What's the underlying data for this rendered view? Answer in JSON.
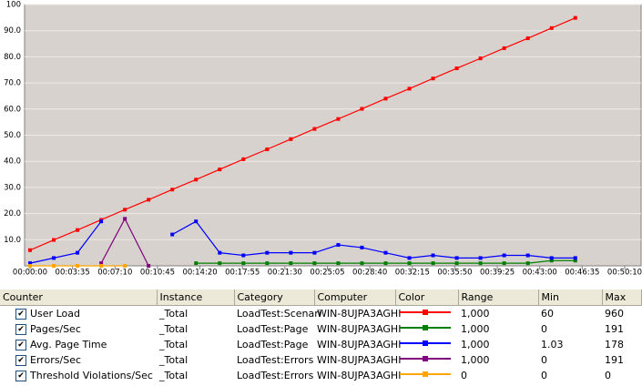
{
  "chart_data": {
    "type": "line",
    "x": [
      0,
      120,
      240,
      360,
      480,
      600,
      720,
      840,
      960,
      1080,
      1200,
      1320,
      1440,
      1560,
      1680,
      1800,
      1920,
      2040,
      2160,
      2280,
      2400,
      2520,
      2640,
      2760
    ],
    "xlim": [
      0,
      3010
    ],
    "xticks": [
      {
        "value": 0,
        "label": "00:00:00"
      },
      {
        "value": 215,
        "label": "00:03:35"
      },
      {
        "value": 430,
        "label": "00:07:10"
      },
      {
        "value": 645,
        "label": "00:10:45"
      },
      {
        "value": 860,
        "label": "00:14:20"
      },
      {
        "value": 1075,
        "label": "00:17:55"
      },
      {
        "value": 1290,
        "label": "00:21:30"
      },
      {
        "value": 1505,
        "label": "00:25:05"
      },
      {
        "value": 1720,
        "label": "00:28:40"
      },
      {
        "value": 1935,
        "label": "00:32:15"
      },
      {
        "value": 2150,
        "label": "00:35:50"
      },
      {
        "value": 2365,
        "label": "00:39:25"
      },
      {
        "value": 2580,
        "label": "00:43:00"
      },
      {
        "value": 2795,
        "label": "00:46:35"
      },
      {
        "value": 3010,
        "label": "00:50:10"
      }
    ],
    "ylim": [
      0,
      100
    ],
    "yticks": [
      {
        "value": 10,
        "label": "10.0"
      },
      {
        "value": 20,
        "label": "20.0"
      },
      {
        "value": 30,
        "label": "30.0"
      },
      {
        "value": 40,
        "label": "40.0"
      },
      {
        "value": 50,
        "label": "50.0"
      },
      {
        "value": 60,
        "label": "60.0"
      },
      {
        "value": 70,
        "label": "70.0"
      },
      {
        "value": 80,
        "label": "80.0"
      },
      {
        "value": 90,
        "label": "90.0"
      },
      100
    ],
    "grid": true,
    "series": [
      {
        "name": "User Load",
        "color": "#ff0000",
        "values": [
          6.0,
          9.9,
          13.7,
          17.6,
          21.5,
          25.3,
          29.2,
          33.0,
          36.9,
          40.8,
          44.6,
          48.5,
          52.4,
          56.2,
          60.1,
          64.0,
          67.8,
          71.7,
          75.6,
          79.4,
          83.3,
          87.1,
          91.0,
          94.9
        ]
      },
      {
        "name": "Pages/Sec",
        "color": "#008000",
        "values": [
          null,
          null,
          null,
          null,
          null,
          null,
          null,
          1,
          1,
          1,
          1,
          1,
          1,
          1,
          1,
          1,
          1,
          1,
          1,
          1,
          1,
          1,
          2,
          2
        ]
      },
      {
        "name": "Avg. Page Time",
        "color": "#0000ff",
        "values": [
          1,
          3,
          5,
          17,
          null,
          null,
          12,
          17,
          5,
          4,
          5,
          5,
          5,
          8,
          7,
          5,
          3,
          4,
          3,
          3,
          4,
          4,
          3,
          3
        ]
      },
      {
        "name": "Errors/Sec",
        "color": "#800080",
        "values": [
          null,
          null,
          null,
          1,
          18,
          0,
          null,
          null,
          null,
          null,
          null,
          null,
          null,
          null,
          null,
          null,
          null,
          null,
          null,
          null,
          null,
          null,
          null,
          null
        ]
      },
      {
        "name": "Threshold Violations/Sec",
        "color": "#ffa500",
        "values": [
          0,
          0,
          0,
          0,
          0,
          null,
          null,
          null,
          null,
          null,
          null,
          null,
          null,
          null,
          null,
          null,
          null,
          null,
          null,
          null,
          null,
          null,
          null,
          null
        ]
      }
    ]
  },
  "table": {
    "columns": [
      "Counter",
      "Instance",
      "Category",
      "Computer",
      "Color",
      "Range",
      "Min",
      "Max"
    ],
    "rows": [
      [
        "_Total",
        "LoadTest:Scenari",
        "WIN-8UJPA3AGHI",
        "1,000",
        "60",
        "960"
      ],
      [
        "_Total",
        "LoadTest:Page",
        "WIN-8UJPA3AGHI",
        "1,000",
        "0",
        "191"
      ],
      [
        "_Total",
        "LoadTest:Page",
        "WIN-8UJPA3AGHI",
        "1,000",
        "1.03",
        "178"
      ],
      [
        "_Total",
        "LoadTest:Errors",
        "WIN-8UJPA3AGHI",
        "1,000",
        "0",
        "191"
      ],
      [
        "_Total",
        "LoadTest:Errors",
        "WIN-8UJPA3AGHI",
        "0",
        "0",
        "0"
      ]
    ]
  }
}
